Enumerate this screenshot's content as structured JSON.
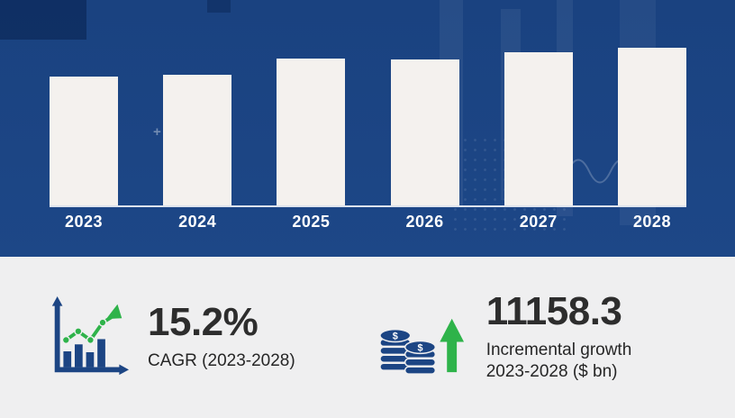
{
  "chart_data": {
    "type": "bar",
    "title": "",
    "xlabel": "",
    "ylabel": "",
    "categories": [
      "2023",
      "2024",
      "2025",
      "2026",
      "2027",
      "2028"
    ],
    "values": [
      143,
      145,
      163,
      162,
      170,
      175
    ],
    "value_unit": "relative bar height (no numeric axis shown in image)",
    "grid": false,
    "legend": false,
    "bar_color": "#f4f1ee",
    "background_color": "#1c4483"
  },
  "stats": {
    "cagr": {
      "value": "15.2%",
      "label": "CAGR (2023-2028)"
    },
    "incremental": {
      "value": "11158.3",
      "label_line1": "Incremental growth",
      "label_line2": "2023-2028 ($ bn)"
    }
  },
  "colors": {
    "navy": "#1c4584",
    "green_accent": "#2eb34a",
    "bar_fill": "#f4f1ee",
    "panel_bg": "#efeff0",
    "text_dark": "#2d2d2d",
    "year_text": "#ffffff"
  }
}
